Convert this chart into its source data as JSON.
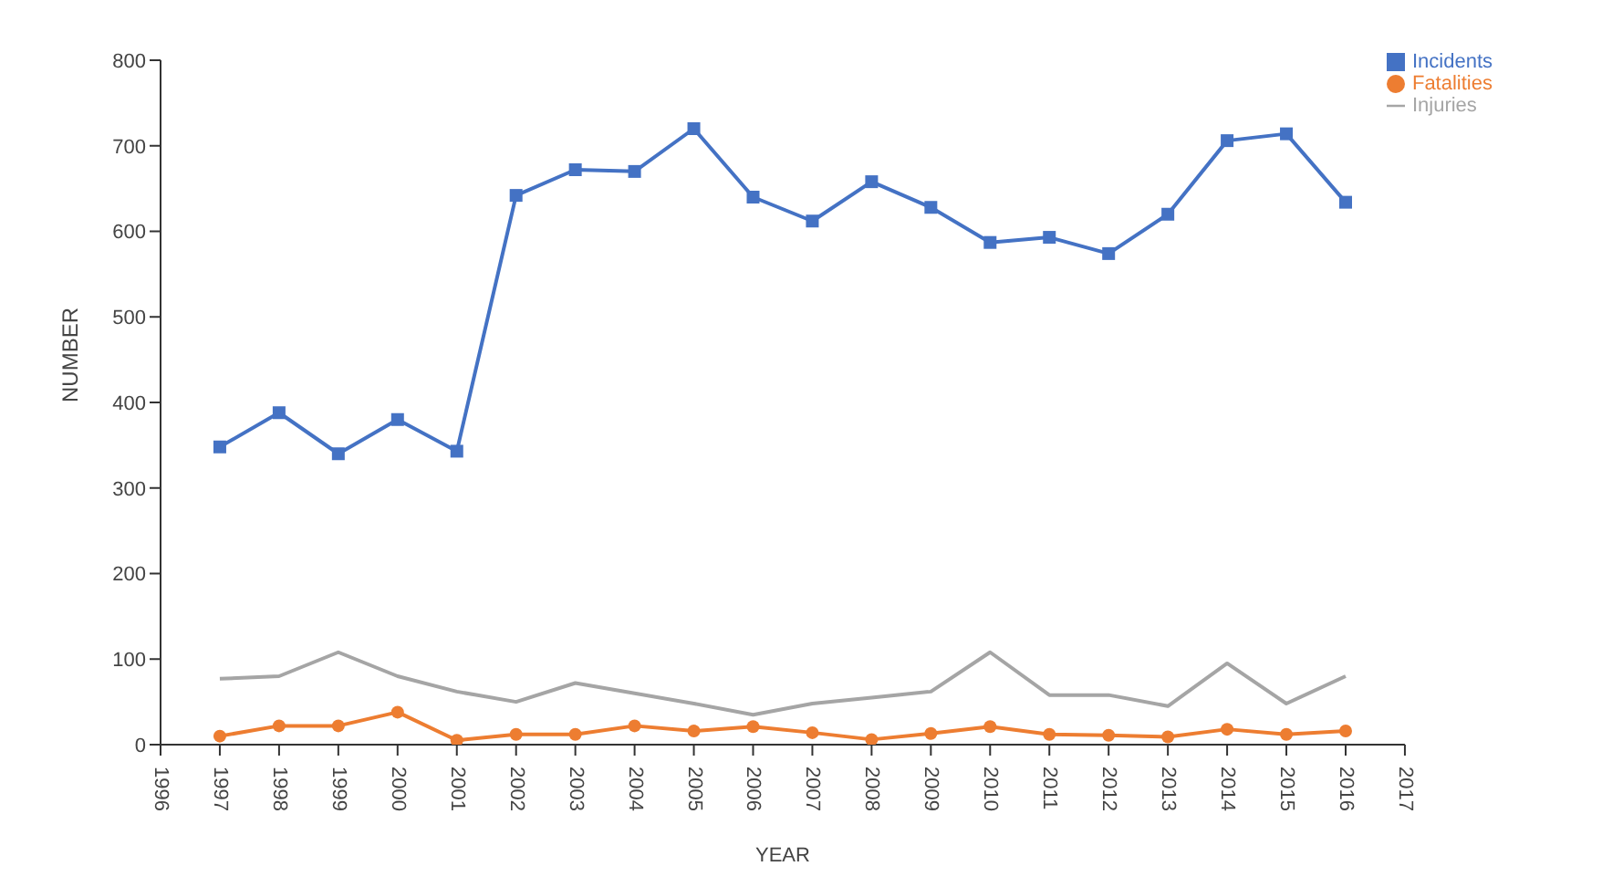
{
  "chart_data": {
    "type": "line",
    "xlabel": "YEAR",
    "ylabel": "NUMBER",
    "x": [
      1997,
      1998,
      1999,
      2000,
      2001,
      2002,
      2003,
      2004,
      2005,
      2006,
      2007,
      2008,
      2009,
      2010,
      2011,
      2012,
      2013,
      2014,
      2015,
      2016
    ],
    "series": [
      {
        "name": "Incidents",
        "color": "#4472c4",
        "marker": "square",
        "values": [
          348,
          388,
          340,
          380,
          343,
          642,
          672,
          670,
          720,
          640,
          612,
          658,
          628,
          587,
          593,
          574,
          620,
          706,
          714,
          634
        ]
      },
      {
        "name": "Fatalities",
        "color": "#ed7d31",
        "marker": "circle",
        "values": [
          10,
          22,
          22,
          38,
          5,
          12,
          12,
          22,
          16,
          21,
          14,
          6,
          13,
          21,
          12,
          11,
          9,
          18,
          12,
          16
        ]
      },
      {
        "name": "Injuries",
        "color": "#a5a5a5",
        "marker": "none",
        "values": [
          77,
          80,
          108,
          80,
          62,
          50,
          72,
          60,
          48,
          35,
          48,
          55,
          62,
          108,
          58,
          58,
          45,
          95,
          48,
          80
        ]
      }
    ],
    "xlim": [
      1996,
      2017
    ],
    "xticks": [
      1996,
      1997,
      1998,
      1999,
      2000,
      2001,
      2002,
      2003,
      2004,
      2005,
      2006,
      2007,
      2008,
      2009,
      2010,
      2011,
      2012,
      2013,
      2014,
      2015,
      2016,
      2017
    ],
    "ylim": [
      0,
      800
    ],
    "yticks": [
      0,
      100,
      200,
      300,
      400,
      500,
      600,
      700,
      800
    ],
    "grid": false,
    "legend": "top right"
  }
}
